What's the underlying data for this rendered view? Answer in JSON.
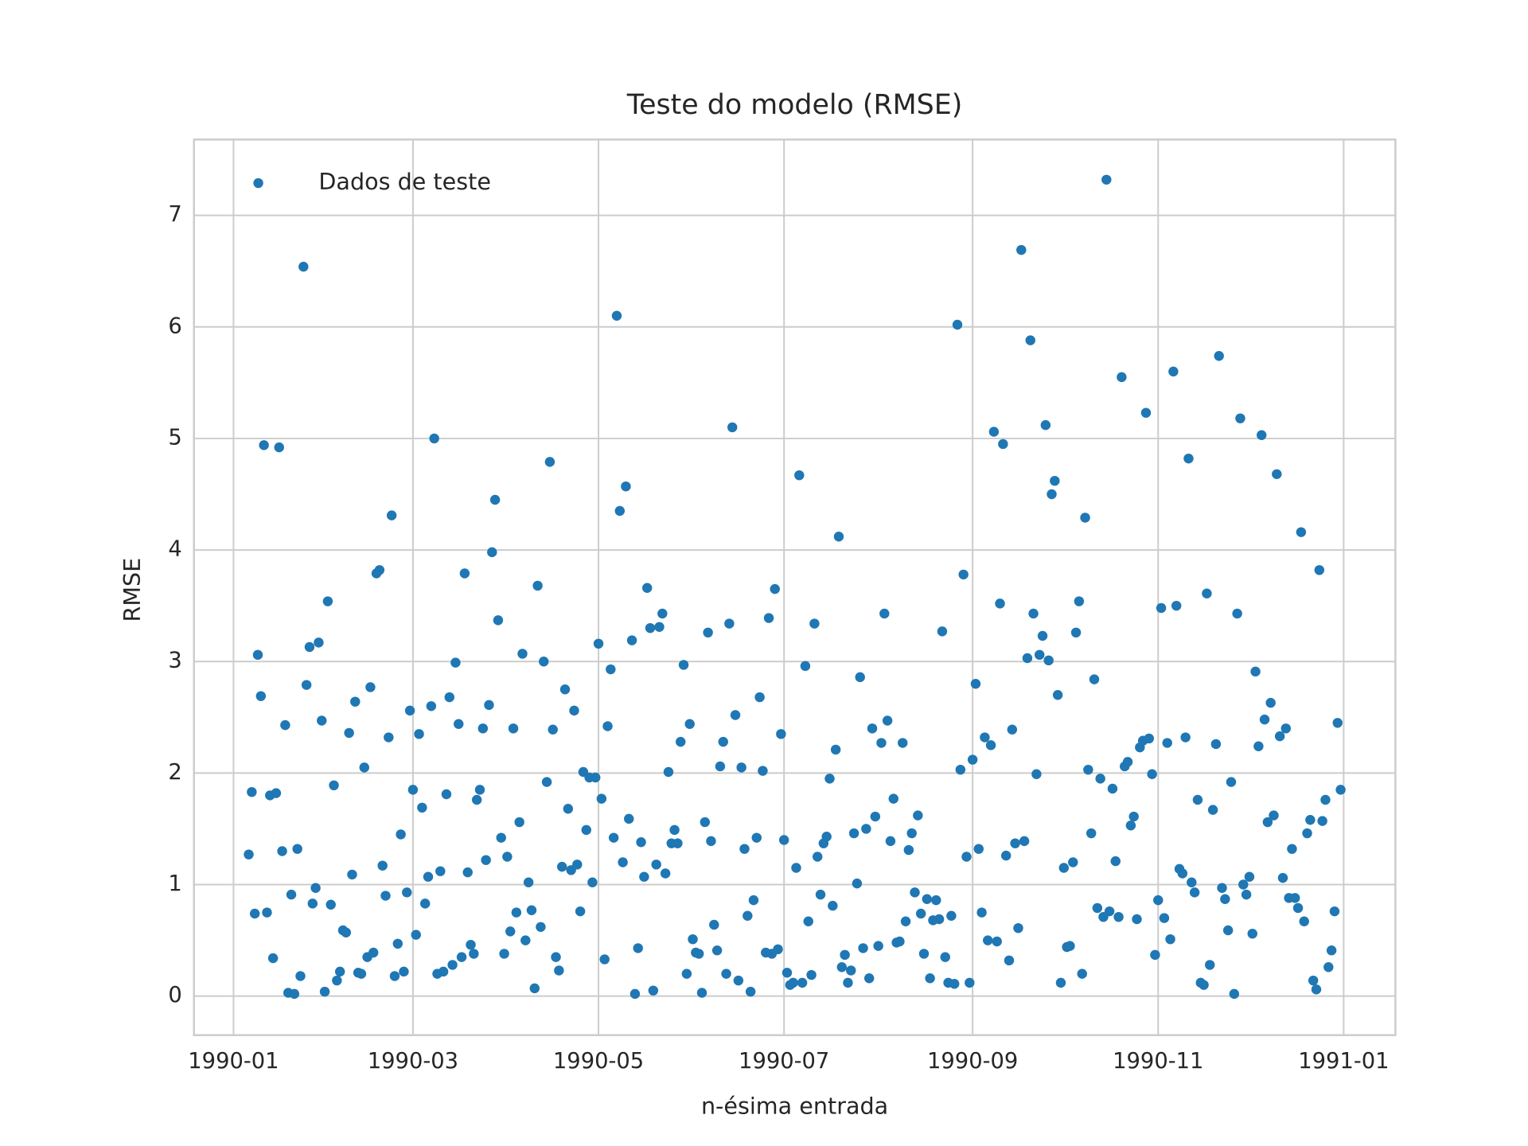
{
  "chart_data": {
    "type": "scatter",
    "title": "Teste do modelo (RMSE)",
    "x_label": "n-ésima entrada",
    "y_label": "RMSE",
    "series": [
      {
        "name": "Dados de teste",
        "color": "#1f77b4",
        "x": [
          5,
          6,
          7,
          8,
          9,
          10,
          11,
          12,
          13,
          14,
          15,
          16,
          17,
          18,
          19,
          20,
          21,
          22,
          23,
          24,
          25,
          26,
          27,
          28,
          29,
          30,
          31,
          32,
          33,
          34,
          35,
          36,
          37,
          38,
          39,
          40,
          41,
          42,
          43,
          44,
          45,
          46,
          47,
          48,
          49,
          50,
          51,
          52,
          53,
          54,
          55,
          56,
          57,
          58,
          59,
          60,
          61,
          62,
          63,
          64,
          65,
          66,
          67,
          68,
          69,
          70,
          71,
          72,
          73,
          74,
          75,
          76,
          77,
          78,
          79,
          80,
          81,
          82,
          83,
          84,
          85,
          86,
          87,
          88,
          89,
          90,
          91,
          92,
          93,
          94,
          95,
          96,
          97,
          98,
          99,
          100,
          101,
          102,
          103,
          104,
          105,
          106,
          107,
          108,
          109,
          110,
          111,
          112,
          113,
          114,
          115,
          116,
          117,
          118,
          119,
          120,
          121,
          122,
          123,
          124,
          125,
          126,
          127,
          128,
          129,
          130,
          131,
          132,
          133,
          134,
          135,
          136,
          137,
          138,
          139,
          140,
          141,
          142,
          143,
          144,
          145,
          146,
          147,
          148,
          149,
          150,
          151,
          152,
          153,
          154,
          155,
          156,
          157,
          158,
          159,
          160,
          161,
          162,
          163,
          164,
          165,
          166,
          167,
          168,
          169,
          170,
          171,
          172,
          173,
          174,
          175,
          176,
          177,
          178,
          179,
          180,
          181,
          182,
          183,
          184,
          185,
          186,
          187,
          188,
          189,
          190,
          191,
          192,
          193,
          194,
          195,
          196,
          197,
          198,
          199,
          200,
          201,
          202,
          203,
          204,
          205,
          206,
          207,
          208,
          209,
          210,
          211,
          212,
          213,
          214,
          215,
          216,
          217,
          218,
          219,
          220,
          221,
          222,
          223,
          224,
          225,
          226,
          227,
          228,
          229,
          230,
          231,
          232,
          233,
          234,
          235,
          236,
          237,
          238,
          239,
          240,
          241,
          242,
          243,
          244,
          245,
          246,
          247,
          248,
          249,
          250,
          251,
          252,
          253,
          254,
          255,
          256,
          257,
          258,
          259,
          260,
          261,
          262,
          263,
          264,
          265,
          266,
          267,
          268,
          269,
          270,
          271,
          272,
          273,
          274,
          275,
          276,
          277,
          278,
          279,
          280,
          281,
          282,
          283,
          284,
          285,
          286,
          287,
          288,
          289,
          290,
          291,
          292,
          293,
          294,
          295,
          296,
          297,
          298,
          299,
          300,
          301,
          302,
          303,
          304,
          305,
          306,
          307,
          308,
          309,
          310,
          311,
          312,
          313,
          314,
          315,
          316,
          317,
          318,
          319,
          320,
          321,
          322,
          323,
          324,
          325,
          326,
          327,
          328,
          329,
          330,
          331,
          332,
          333,
          334,
          335,
          336,
          337,
          338,
          339,
          340,
          341,
          342,
          343,
          344,
          345,
          346,
          347,
          348,
          349,
          350,
          351,
          352,
          353,
          354,
          355,
          356,
          357,
          358,
          359,
          360,
          361,
          362,
          363,
          364
        ],
        "values": [
          1.27,
          1.83,
          0.74,
          3.06,
          2.69,
          4.94,
          0.75,
          1.8,
          0.34,
          1.82,
          4.92,
          1.3,
          2.43,
          0.03,
          0.91,
          0.02,
          1.32,
          0.18,
          6.54,
          2.79,
          3.13,
          0.83,
          0.97,
          3.17,
          2.47,
          0.04,
          3.54,
          0.82,
          1.89,
          0.14,
          0.22,
          0.59,
          0.57,
          2.36,
          1.09,
          2.64,
          0.21,
          0.2,
          2.05,
          0.35,
          2.77,
          0.39,
          3.79,
          3.82,
          1.17,
          0.9,
          2.32,
          4.31,
          0.18,
          0.47,
          1.45,
          0.22,
          0.93,
          2.56,
          1.85,
          0.55,
          2.35,
          1.69,
          0.83,
          1.07,
          2.6,
          5.0,
          0.2,
          1.12,
          0.22,
          1.81,
          2.68,
          0.28,
          2.99,
          2.44,
          0.35,
          3.79,
          1.11,
          0.46,
          0.38,
          1.76,
          1.85,
          2.4,
          1.22,
          2.61,
          3.98,
          4.45,
          3.37,
          1.42,
          0.38,
          1.25,
          0.58,
          2.4,
          0.75,
          1.56,
          3.07,
          0.5,
          1.02,
          0.77,
          0.07,
          3.68,
          0.62,
          3.0,
          1.92,
          4.79,
          2.39,
          0.35,
          0.23,
          1.16,
          2.75,
          1.68,
          1.13,
          2.56,
          1.18,
          0.76,
          2.01,
          1.49,
          1.96,
          1.02,
          1.96,
          3.16,
          1.77,
          0.33,
          2.42,
          2.93,
          1.42,
          6.1,
          4.35,
          1.2,
          4.57,
          1.59,
          3.19,
          0.02,
          0.43,
          1.38,
          1.07,
          3.66,
          3.3,
          0.05,
          1.18,
          3.31,
          3.43,
          1.1,
          2.01,
          1.37,
          1.49,
          1.37,
          2.28,
          2.97,
          0.2,
          2.44,
          0.51,
          0.39,
          0.38,
          0.03,
          1.56,
          3.26,
          1.39,
          0.64,
          0.41,
          2.06,
          2.28,
          0.2,
          3.34,
          5.1,
          2.52,
          0.14,
          2.05,
          1.32,
          0.72,
          0.04,
          0.86,
          1.42,
          2.68,
          2.02,
          0.39,
          3.39,
          0.38,
          3.65,
          0.42,
          2.35,
          1.4,
          0.21,
          0.1,
          0.12,
          1.15,
          4.67,
          0.12,
          2.96,
          0.67,
          0.19,
          3.34,
          1.25,
          0.91,
          1.37,
          1.43,
          1.95,
          0.81,
          2.21,
          4.12,
          0.26,
          0.37,
          0.12,
          0.23,
          1.46,
          1.01,
          2.86,
          0.43,
          1.5,
          0.16,
          2.4,
          1.61,
          0.45,
          2.27,
          3.43,
          2.47,
          1.39,
          1.77,
          0.48,
          0.49,
          2.27,
          0.67,
          1.31,
          1.46,
          0.93,
          1.62,
          0.74,
          0.38,
          0.87,
          0.16,
          0.68,
          0.86,
          0.69,
          3.27,
          0.35,
          0.12,
          0.72,
          0.11,
          6.02,
          2.03,
          3.78,
          1.25,
          0.12,
          2.12,
          2.8,
          1.32,
          0.75,
          2.32,
          0.5,
          2.25,
          5.06,
          0.49,
          3.52,
          4.95,
          1.26,
          0.32,
          2.39,
          1.37,
          0.61,
          6.69,
          1.39,
          3.03,
          5.88,
          3.43,
          1.99,
          3.06,
          3.23,
          5.12,
          3.01,
          4.5,
          4.62,
          2.7,
          0.12,
          1.15,
          0.44,
          0.45,
          1.2,
          3.26,
          3.54,
          0.2,
          4.29,
          2.03,
          1.46,
          2.84,
          0.79,
          1.95,
          0.71,
          7.32,
          0.76,
          1.86,
          1.21,
          0.71,
          5.55,
          2.06,
          2.1,
          1.53,
          1.61,
          0.69,
          2.23,
          2.29,
          5.23,
          2.31,
          1.99,
          0.37,
          0.86,
          3.48,
          0.7,
          2.27,
          0.51,
          5.6,
          3.5,
          1.14,
          1.1,
          2.32,
          4.82,
          1.02,
          0.93,
          1.76,
          0.12,
          0.1,
          3.61,
          0.28,
          1.67,
          2.26,
          5.74,
          0.97,
          0.87,
          0.59,
          1.92,
          0.02,
          3.43,
          5.18,
          1.0,
          0.91,
          1.07,
          0.56,
          2.91,
          2.24,
          5.03,
          2.48,
          1.56,
          2.63,
          1.62,
          4.68,
          2.33,
          1.06,
          2.4,
          0.88,
          1.32,
          0.88,
          0.79,
          4.16,
          0.67,
          1.46,
          1.58,
          0.14,
          0.06,
          3.82,
          1.57,
          1.76,
          0.26,
          0.41,
          0.76,
          2.45,
          1.85
        ]
      }
    ],
    "xlim": [
      -13,
      382
    ],
    "xticks": [
      {
        "value": 0,
        "label": "1990-01"
      },
      {
        "value": 59,
        "label": "1990-03"
      },
      {
        "value": 120,
        "label": "1990-05"
      },
      {
        "value": 181,
        "label": "1990-07"
      },
      {
        "value": 243,
        "label": "1990-09"
      },
      {
        "value": 304,
        "label": "1990-11"
      },
      {
        "value": 365,
        "label": "1991-01"
      }
    ],
    "ylim": [
      -0.35,
      7.68
    ],
    "yticks": [
      0,
      1,
      2,
      3,
      4,
      5,
      6,
      7
    ],
    "grid": true,
    "legend": "upper left"
  }
}
